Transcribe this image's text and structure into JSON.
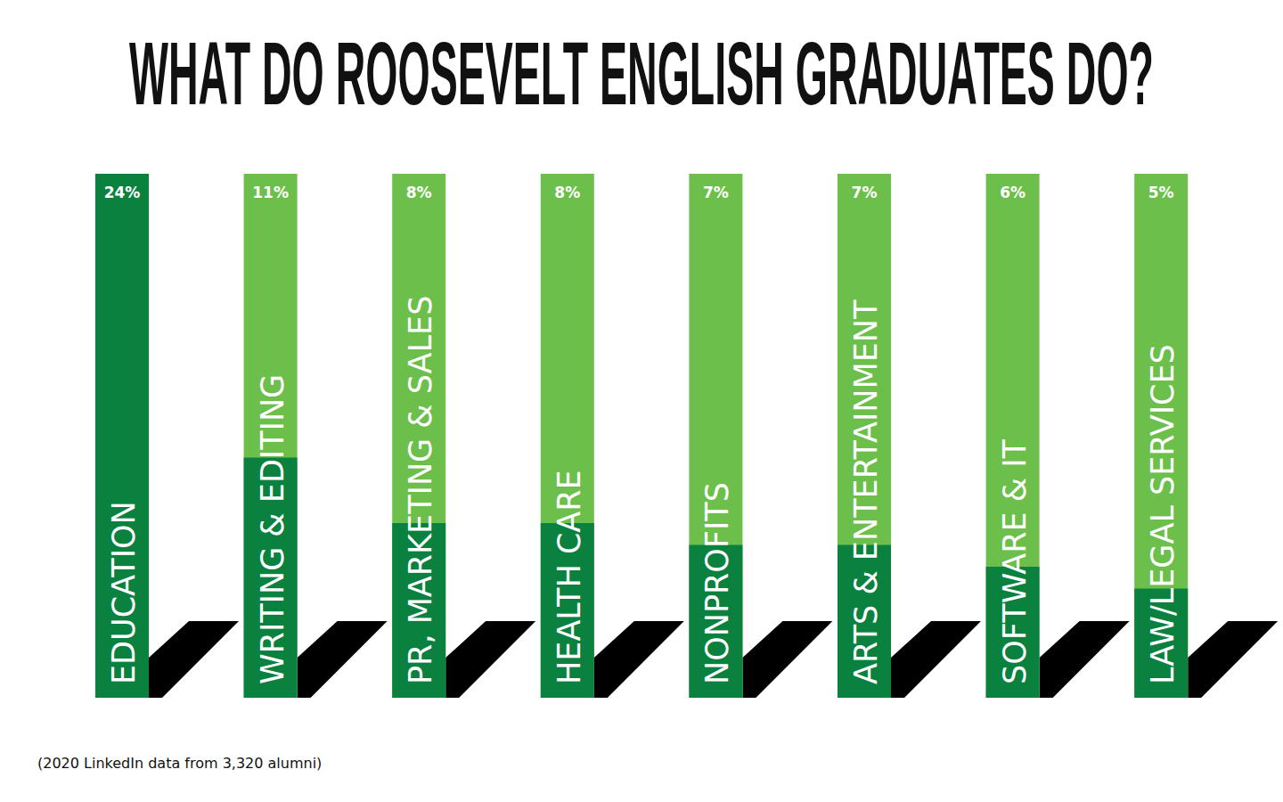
{
  "chart_data": {
    "type": "bar",
    "title": "WHAT DO ROOSEVELT ENGLISH GRADUATES DO?",
    "categories": [
      "EDUCATION",
      "WRITING & EDITING",
      "PR, MARKETING & SALES",
      "HEALTH CARE",
      "NONPROFITS",
      "ARTS & ENTERTAINMENT",
      "SOFTWARE & IT",
      "LAW/LEGAL SERVICES"
    ],
    "values": [
      24,
      11,
      8,
      8,
      7,
      7,
      6,
      5
    ],
    "value_labels": [
      "24%",
      "11%",
      "8%",
      "8%",
      "7%",
      "7%",
      "6%",
      "5%"
    ],
    "color": "#0b8140",
    "ylim": [
      0,
      24
    ],
    "grid": false,
    "data_labels": true,
    "tick_labels": "x",
    "annotations": [
      "(2020 LinkedIn data from 3,320 alumni)"
    ]
  }
}
